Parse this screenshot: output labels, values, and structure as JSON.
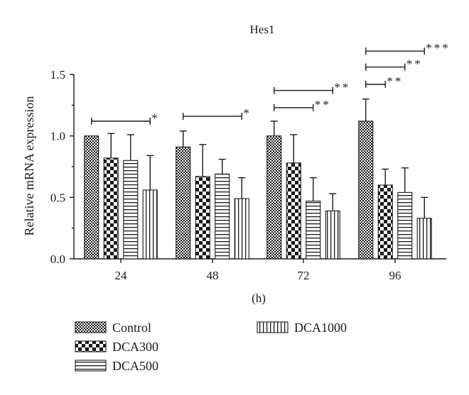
{
  "chart_data": {
    "type": "bar",
    "title": "Hes1",
    "xlabel": "(h)",
    "ylabel": "Relative mRNA expression",
    "ylim": [
      0,
      1.5
    ],
    "yticks": [
      "0.0",
      "0.5",
      "1.0",
      "1.5"
    ],
    "categories": [
      "24",
      "48",
      "72",
      "96"
    ],
    "grid": false,
    "legend_position": "bottom",
    "series": [
      {
        "name": "Control",
        "pattern": "dense-checker",
        "values": [
          1.0,
          0.91,
          1.0,
          1.12
        ],
        "errors": [
          0.0,
          0.13,
          0.12,
          0.18
        ]
      },
      {
        "name": "DCA300",
        "pattern": "checker",
        "values": [
          0.82,
          0.67,
          0.78,
          0.6
        ],
        "errors": [
          0.2,
          0.26,
          0.23,
          0.13
        ]
      },
      {
        "name": "DCA500",
        "pattern": "horizontal-lines",
        "values": [
          0.8,
          0.69,
          0.47,
          0.54
        ],
        "errors": [
          0.21,
          0.12,
          0.19,
          0.2
        ]
      },
      {
        "name": "DCA1000",
        "pattern": "vertical-lines",
        "values": [
          0.56,
          0.49,
          0.39,
          0.33
        ],
        "errors": [
          0.28,
          0.17,
          0.14,
          0.17
        ]
      }
    ],
    "significance": [
      {
        "category": "24",
        "from_series": "Control",
        "to_series": "DCA1000",
        "y": 1.12,
        "label": "*"
      },
      {
        "category": "48",
        "from_series": "Control",
        "to_series": "DCA1000",
        "y": 1.16,
        "label": "*"
      },
      {
        "category": "72",
        "from_series": "Control",
        "to_series": "DCA500",
        "y": 1.23,
        "label": "**"
      },
      {
        "category": "72",
        "from_series": "Control",
        "to_series": "DCA1000",
        "y": 1.37,
        "label": "**"
      },
      {
        "category": "96",
        "from_series": "Control",
        "to_series": "DCA300",
        "y": 1.42,
        "label": "**"
      },
      {
        "category": "96",
        "from_series": "Control",
        "to_series": "DCA500",
        "y": 1.56,
        "label": "**"
      },
      {
        "category": "96",
        "from_series": "Control",
        "to_series": "DCA1000",
        "y": 1.69,
        "label": "***"
      }
    ]
  }
}
